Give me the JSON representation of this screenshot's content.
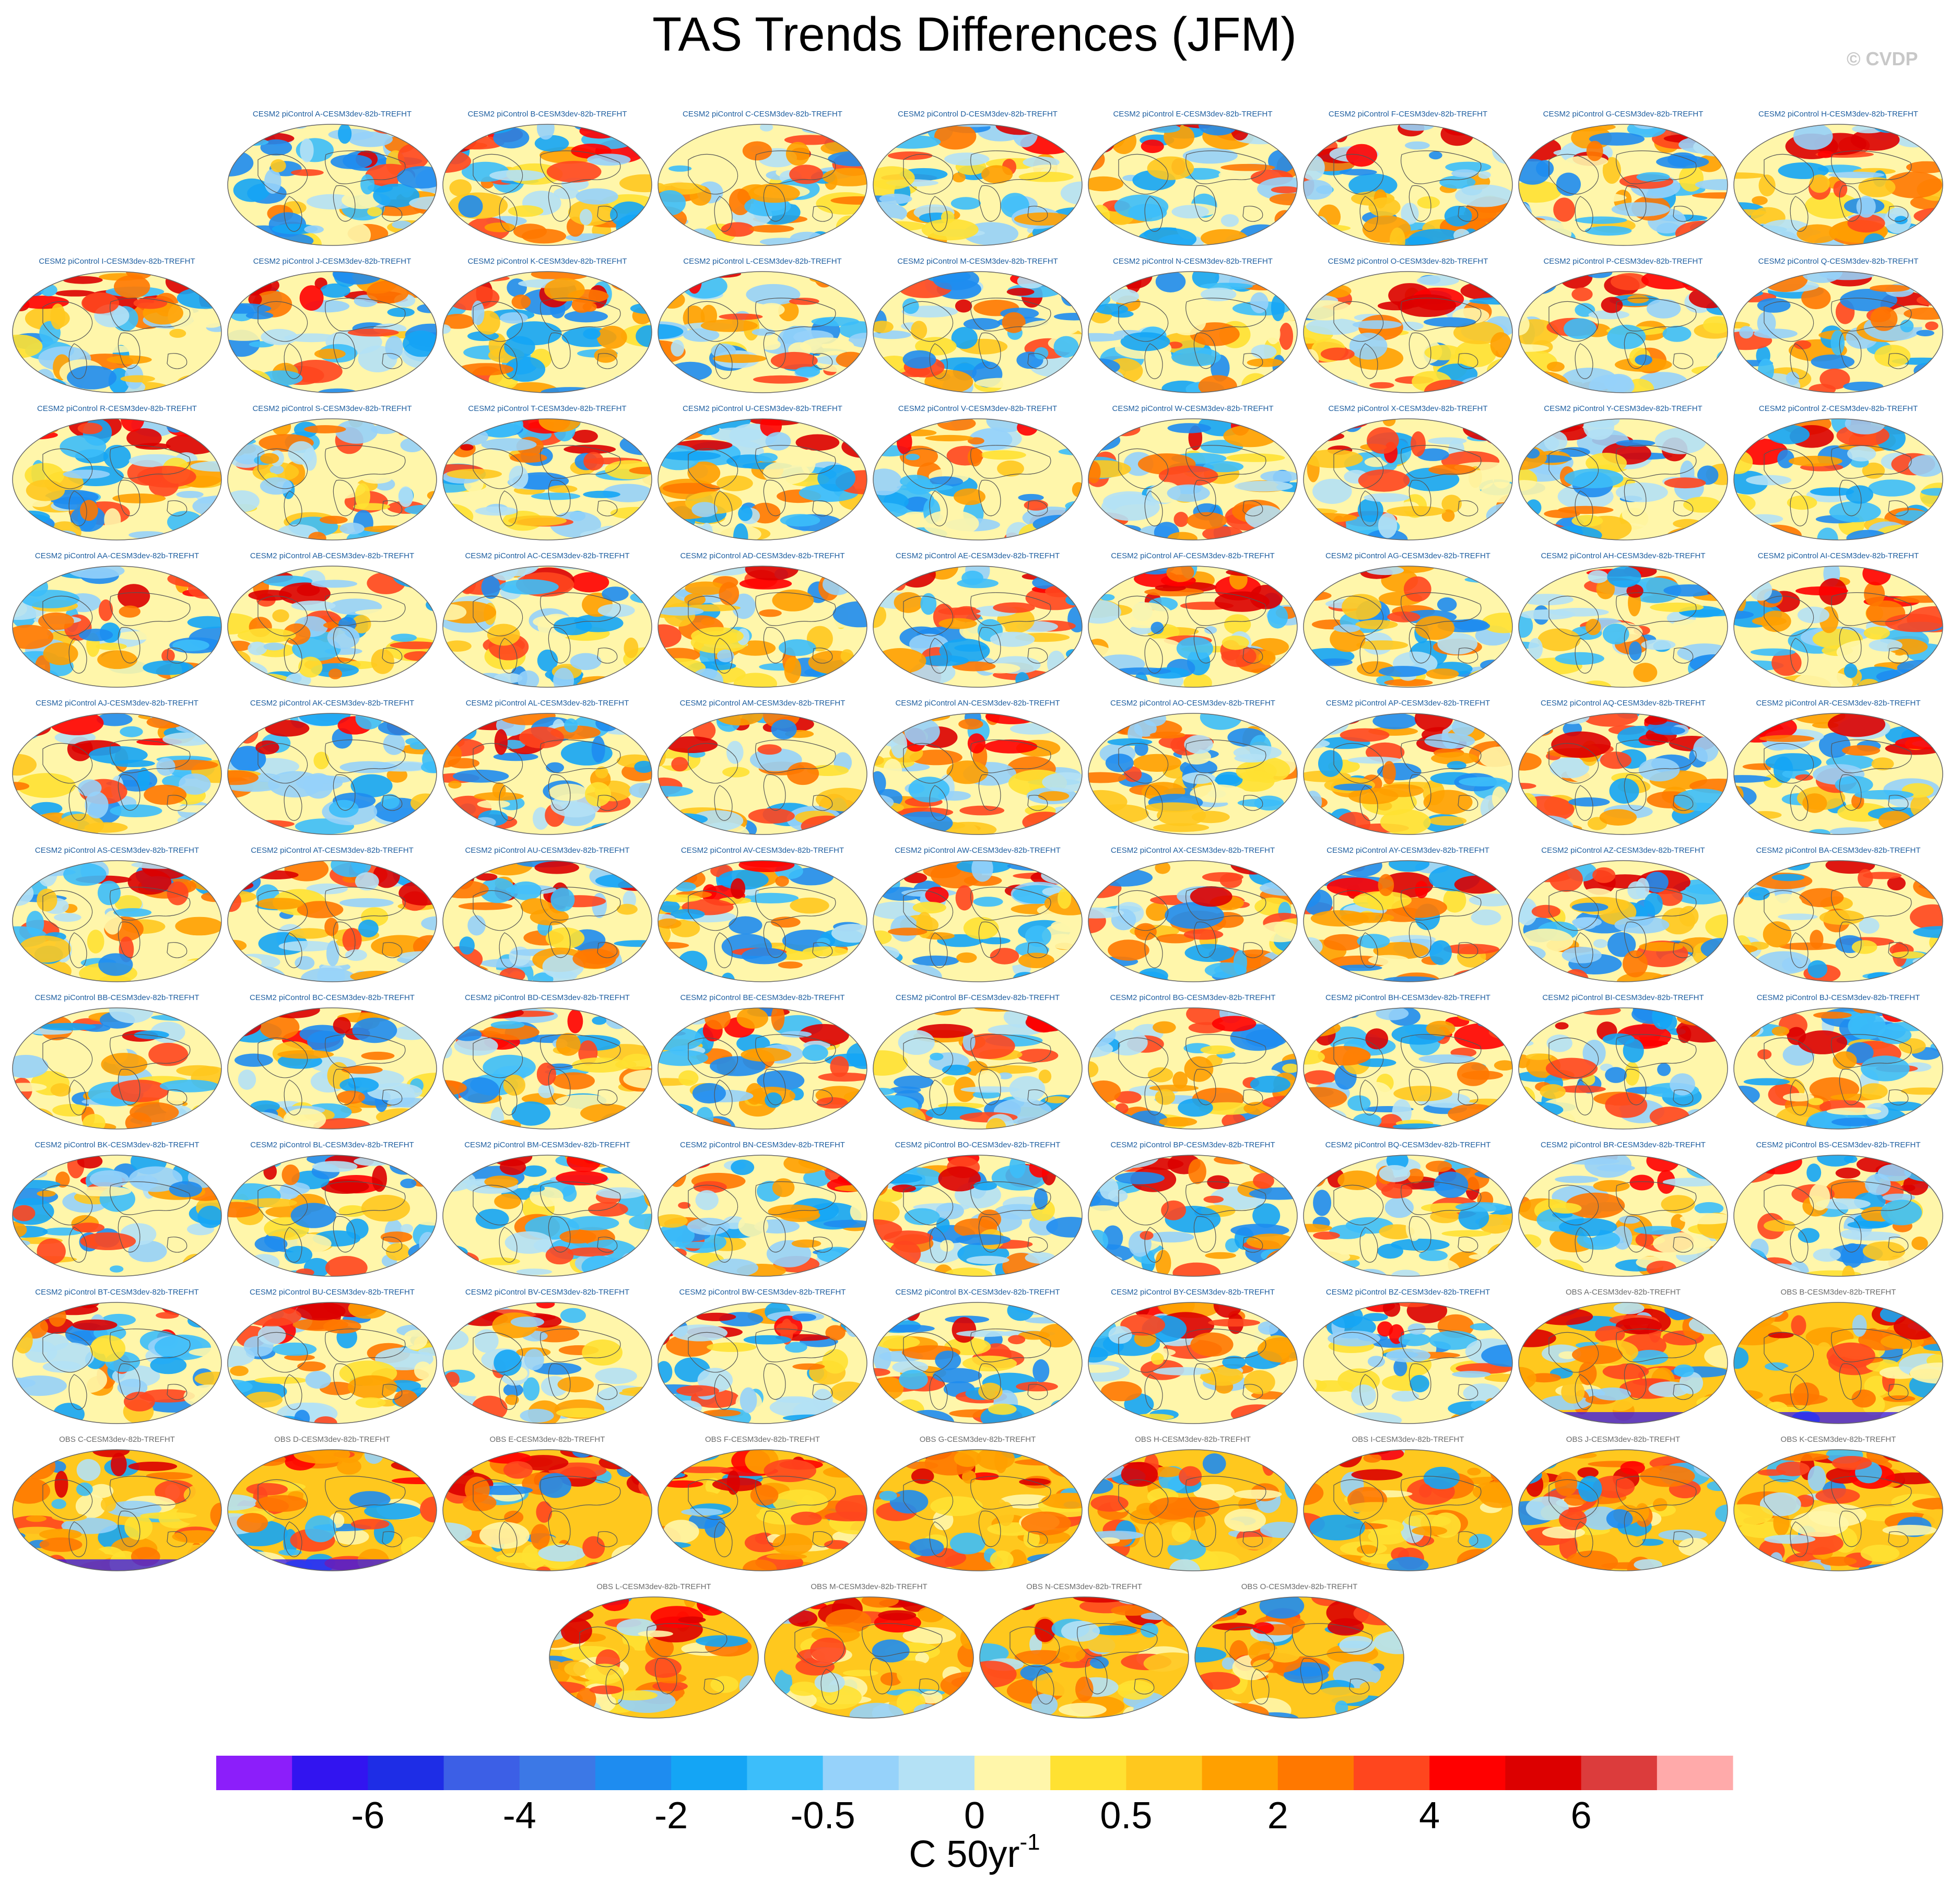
{
  "title": "TAS Trends Differences (JFM)",
  "credit": "© CVDP",
  "colors": {
    "model_label": "#1f5fa0",
    "obs_label": "#6b6b6b",
    "coastline": "#555555",
    "contour_scale": [
      "#8c1efa",
      "#3214f0",
      "#1e2de6",
      "#3c5fe6",
      "#3c78e6",
      "#1e8cf0",
      "#14a5f5",
      "#3cbefa",
      "#96d2fa",
      "#b4e1f5",
      "#fff6aa",
      "#ffe132",
      "#ffc81e",
      "#ffa000",
      "#ff7800",
      "#ff461e",
      "#ff0000",
      "#dc0000",
      "#dc3c3c",
      "#ffaaaa"
    ]
  },
  "chart_data": {
    "type": "heatmap",
    "title": "TAS Trends Differences (JFM)",
    "units_label": "C 50yr",
    "units_exponent": "-1",
    "colorbar": {
      "colors": [
        "#8c1efa",
        "#3214f0",
        "#1e2de6",
        "#3c5fe6",
        "#3c78e6",
        "#1e8cf0",
        "#14a5f5",
        "#3cbefa",
        "#96d2fa",
        "#b4e1f5",
        "#fff6aa",
        "#ffe132",
        "#ffc81e",
        "#ffa000",
        "#ff7800",
        "#ff461e",
        "#ff0000",
        "#dc0000",
        "#dc3c3c",
        "#ffaaaa"
      ],
      "tick_labels": [
        "-6",
        "-4",
        "-2",
        "-0.5",
        "0",
        "0.5",
        "2",
        "4",
        "6"
      ],
      "tick_box_index": [
        2,
        4,
        6,
        8,
        10,
        12,
        14,
        16,
        18
      ]
    },
    "panels": [
      {
        "label": "CESM2 piControl A-CESM3dev-82b-TREFHT",
        "kind": "model",
        "row": 0,
        "col": 1
      },
      {
        "label": "CESM2 piControl B-CESM3dev-82b-TREFHT",
        "kind": "model",
        "row": 0,
        "col": 2
      },
      {
        "label": "CESM2 piControl C-CESM3dev-82b-TREFHT",
        "kind": "model",
        "row": 0,
        "col": 3
      },
      {
        "label": "CESM2 piControl D-CESM3dev-82b-TREFHT",
        "kind": "model",
        "row": 0,
        "col": 4
      },
      {
        "label": "CESM2 piControl E-CESM3dev-82b-TREFHT",
        "kind": "model",
        "row": 0,
        "col": 5
      },
      {
        "label": "CESM2 piControl F-CESM3dev-82b-TREFHT",
        "kind": "model",
        "row": 0,
        "col": 6
      },
      {
        "label": "CESM2 piControl G-CESM3dev-82b-TREFHT",
        "kind": "model",
        "row": 0,
        "col": 7
      },
      {
        "label": "CESM2 piControl H-CESM3dev-82b-TREFHT",
        "kind": "model",
        "row": 0,
        "col": 8
      },
      {
        "label": "CESM2 piControl I-CESM3dev-82b-TREFHT",
        "kind": "model",
        "row": 1,
        "col": 0
      },
      {
        "label": "CESM2 piControl J-CESM3dev-82b-TREFHT",
        "kind": "model",
        "row": 1,
        "col": 1
      },
      {
        "label": "CESM2 piControl K-CESM3dev-82b-TREFHT",
        "kind": "model",
        "row": 1,
        "col": 2
      },
      {
        "label": "CESM2 piControl L-CESM3dev-82b-TREFHT",
        "kind": "model",
        "row": 1,
        "col": 3
      },
      {
        "label": "CESM2 piControl M-CESM3dev-82b-TREFHT",
        "kind": "model",
        "row": 1,
        "col": 4
      },
      {
        "label": "CESM2 piControl N-CESM3dev-82b-TREFHT",
        "kind": "model",
        "row": 1,
        "col": 5
      },
      {
        "label": "CESM2 piControl O-CESM3dev-82b-TREFHT",
        "kind": "model",
        "row": 1,
        "col": 6
      },
      {
        "label": "CESM2 piControl P-CESM3dev-82b-TREFHT",
        "kind": "model",
        "row": 1,
        "col": 7
      },
      {
        "label": "CESM2 piControl Q-CESM3dev-82b-TREFHT",
        "kind": "model",
        "row": 1,
        "col": 8
      },
      {
        "label": "CESM2 piControl R-CESM3dev-82b-TREFHT",
        "kind": "model",
        "row": 2,
        "col": 0
      },
      {
        "label": "CESM2 piControl S-CESM3dev-82b-TREFHT",
        "kind": "model",
        "row": 2,
        "col": 1
      },
      {
        "label": "CESM2 piControl T-CESM3dev-82b-TREFHT",
        "kind": "model",
        "row": 2,
        "col": 2
      },
      {
        "label": "CESM2 piControl U-CESM3dev-82b-TREFHT",
        "kind": "model",
        "row": 2,
        "col": 3
      },
      {
        "label": "CESM2 piControl V-CESM3dev-82b-TREFHT",
        "kind": "model",
        "row": 2,
        "col": 4
      },
      {
        "label": "CESM2 piControl W-CESM3dev-82b-TREFHT",
        "kind": "model",
        "row": 2,
        "col": 5
      },
      {
        "label": "CESM2 piControl X-CESM3dev-82b-TREFHT",
        "kind": "model",
        "row": 2,
        "col": 6
      },
      {
        "label": "CESM2 piControl Y-CESM3dev-82b-TREFHT",
        "kind": "model",
        "row": 2,
        "col": 7
      },
      {
        "label": "CESM2 piControl Z-CESM3dev-82b-TREFHT",
        "kind": "model",
        "row": 2,
        "col": 8
      },
      {
        "label": "CESM2 piControl AA-CESM3dev-82b-TREFHT",
        "kind": "model",
        "row": 3,
        "col": 0
      },
      {
        "label": "CESM2 piControl AB-CESM3dev-82b-TREFHT",
        "kind": "model",
        "row": 3,
        "col": 1
      },
      {
        "label": "CESM2 piControl AC-CESM3dev-82b-TREFHT",
        "kind": "model",
        "row": 3,
        "col": 2
      },
      {
        "label": "CESM2 piControl AD-CESM3dev-82b-TREFHT",
        "kind": "model",
        "row": 3,
        "col": 3
      },
      {
        "label": "CESM2 piControl AE-CESM3dev-82b-TREFHT",
        "kind": "model",
        "row": 3,
        "col": 4
      },
      {
        "label": "CESM2 piControl AF-CESM3dev-82b-TREFHT",
        "kind": "model",
        "row": 3,
        "col": 5
      },
      {
        "label": "CESM2 piControl AG-CESM3dev-82b-TREFHT",
        "kind": "model",
        "row": 3,
        "col": 6
      },
      {
        "label": "CESM2 piControl AH-CESM3dev-82b-TREFHT",
        "kind": "model",
        "row": 3,
        "col": 7
      },
      {
        "label": "CESM2 piControl AI-CESM3dev-82b-TREFHT",
        "kind": "model",
        "row": 3,
        "col": 8
      },
      {
        "label": "CESM2 piControl AJ-CESM3dev-82b-TREFHT",
        "kind": "model",
        "row": 4,
        "col": 0
      },
      {
        "label": "CESM2 piControl AK-CESM3dev-82b-TREFHT",
        "kind": "model",
        "row": 4,
        "col": 1
      },
      {
        "label": "CESM2 piControl AL-CESM3dev-82b-TREFHT",
        "kind": "model",
        "row": 4,
        "col": 2
      },
      {
        "label": "CESM2 piControl AM-CESM3dev-82b-TREFHT",
        "kind": "model",
        "row": 4,
        "col": 3
      },
      {
        "label": "CESM2 piControl AN-CESM3dev-82b-TREFHT",
        "kind": "model",
        "row": 4,
        "col": 4
      },
      {
        "label": "CESM2 piControl AO-CESM3dev-82b-TREFHT",
        "kind": "model",
        "row": 4,
        "col": 5
      },
      {
        "label": "CESM2 piControl AP-CESM3dev-82b-TREFHT",
        "kind": "model",
        "row": 4,
        "col": 6
      },
      {
        "label": "CESM2 piControl AQ-CESM3dev-82b-TREFHT",
        "kind": "model",
        "row": 4,
        "col": 7
      },
      {
        "label": "CESM2 piControl AR-CESM3dev-82b-TREFHT",
        "kind": "model",
        "row": 4,
        "col": 8
      },
      {
        "label": "CESM2 piControl AS-CESM3dev-82b-TREFHT",
        "kind": "model",
        "row": 5,
        "col": 0
      },
      {
        "label": "CESM2 piControl AT-CESM3dev-82b-TREFHT",
        "kind": "model",
        "row": 5,
        "col": 1
      },
      {
        "label": "CESM2 piControl AU-CESM3dev-82b-TREFHT",
        "kind": "model",
        "row": 5,
        "col": 2
      },
      {
        "label": "CESM2 piControl AV-CESM3dev-82b-TREFHT",
        "kind": "model",
        "row": 5,
        "col": 3
      },
      {
        "label": "CESM2 piControl AW-CESM3dev-82b-TREFHT",
        "kind": "model",
        "row": 5,
        "col": 4
      },
      {
        "label": "CESM2 piControl AX-CESM3dev-82b-TREFHT",
        "kind": "model",
        "row": 5,
        "col": 5
      },
      {
        "label": "CESM2 piControl AY-CESM3dev-82b-TREFHT",
        "kind": "model",
        "row": 5,
        "col": 6
      },
      {
        "label": "CESM2 piControl AZ-CESM3dev-82b-TREFHT",
        "kind": "model",
        "row": 5,
        "col": 7
      },
      {
        "label": "CESM2 piControl BA-CESM3dev-82b-TREFHT",
        "kind": "model",
        "row": 5,
        "col": 8
      },
      {
        "label": "CESM2 piControl BB-CESM3dev-82b-TREFHT",
        "kind": "model",
        "row": 6,
        "col": 0
      },
      {
        "label": "CESM2 piControl BC-CESM3dev-82b-TREFHT",
        "kind": "model",
        "row": 6,
        "col": 1
      },
      {
        "label": "CESM2 piControl BD-CESM3dev-82b-TREFHT",
        "kind": "model",
        "row": 6,
        "col": 2
      },
      {
        "label": "CESM2 piControl BE-CESM3dev-82b-TREFHT",
        "kind": "model",
        "row": 6,
        "col": 3
      },
      {
        "label": "CESM2 piControl BF-CESM3dev-82b-TREFHT",
        "kind": "model",
        "row": 6,
        "col": 4
      },
      {
        "label": "CESM2 piControl BG-CESM3dev-82b-TREFHT",
        "kind": "model",
        "row": 6,
        "col": 5
      },
      {
        "label": "CESM2 piControl BH-CESM3dev-82b-TREFHT",
        "kind": "model",
        "row": 6,
        "col": 6
      },
      {
        "label": "CESM2 piControl BI-CESM3dev-82b-TREFHT",
        "kind": "model",
        "row": 6,
        "col": 7
      },
      {
        "label": "CESM2 piControl BJ-CESM3dev-82b-TREFHT",
        "kind": "model",
        "row": 6,
        "col": 8
      },
      {
        "label": "CESM2 piControl BK-CESM3dev-82b-TREFHT",
        "kind": "model",
        "row": 7,
        "col": 0
      },
      {
        "label": "CESM2 piControl BL-CESM3dev-82b-TREFHT",
        "kind": "model",
        "row": 7,
        "col": 1
      },
      {
        "label": "CESM2 piControl BM-CESM3dev-82b-TREFHT",
        "kind": "model",
        "row": 7,
        "col": 2
      },
      {
        "label": "CESM2 piControl BN-CESM3dev-82b-TREFHT",
        "kind": "model",
        "row": 7,
        "col": 3
      },
      {
        "label": "CESM2 piControl BO-CESM3dev-82b-TREFHT",
        "kind": "model",
        "row": 7,
        "col": 4
      },
      {
        "label": "CESM2 piControl BP-CESM3dev-82b-TREFHT",
        "kind": "model",
        "row": 7,
        "col": 5
      },
      {
        "label": "CESM2 piControl BQ-CESM3dev-82b-TREFHT",
        "kind": "model",
        "row": 7,
        "col": 6
      },
      {
        "label": "CESM2 piControl BR-CESM3dev-82b-TREFHT",
        "kind": "model",
        "row": 7,
        "col": 7
      },
      {
        "label": "CESM2 piControl BS-CESM3dev-82b-TREFHT",
        "kind": "model",
        "row": 7,
        "col": 8
      },
      {
        "label": "CESM2 piControl BT-CESM3dev-82b-TREFHT",
        "kind": "model",
        "row": 8,
        "col": 0
      },
      {
        "label": "CESM2 piControl BU-CESM3dev-82b-TREFHT",
        "kind": "model",
        "row": 8,
        "col": 1
      },
      {
        "label": "CESM2 piControl BV-CESM3dev-82b-TREFHT",
        "kind": "model",
        "row": 8,
        "col": 2
      },
      {
        "label": "CESM2 piControl BW-CESM3dev-82b-TREFHT",
        "kind": "model",
        "row": 8,
        "col": 3
      },
      {
        "label": "CESM2 piControl BX-CESM3dev-82b-TREFHT",
        "kind": "model",
        "row": 8,
        "col": 4
      },
      {
        "label": "CESM2 piControl BY-CESM3dev-82b-TREFHT",
        "kind": "model",
        "row": 8,
        "col": 5
      },
      {
        "label": "CESM2 piControl BZ-CESM3dev-82b-TREFHT",
        "kind": "model",
        "row": 8,
        "col": 6
      },
      {
        "label": "OBS A-CESM3dev-82b-TREFHT",
        "kind": "obs",
        "row": 8,
        "col": 7
      },
      {
        "label": "OBS B-CESM3dev-82b-TREFHT",
        "kind": "obs",
        "row": 8,
        "col": 8
      },
      {
        "label": "OBS C-CESM3dev-82b-TREFHT",
        "kind": "obs",
        "row": 9,
        "col": 0
      },
      {
        "label": "OBS D-CESM3dev-82b-TREFHT",
        "kind": "obs",
        "row": 9,
        "col": 1
      },
      {
        "label": "OBS E-CESM3dev-82b-TREFHT",
        "kind": "obs",
        "row": 9,
        "col": 2
      },
      {
        "label": "OBS F-CESM3dev-82b-TREFHT",
        "kind": "obs",
        "row": 9,
        "col": 3
      },
      {
        "label": "OBS G-CESM3dev-82b-TREFHT",
        "kind": "obs",
        "row": 9,
        "col": 4
      },
      {
        "label": "OBS H-CESM3dev-82b-TREFHT",
        "kind": "obs",
        "row": 9,
        "col": 5
      },
      {
        "label": "OBS I-CESM3dev-82b-TREFHT",
        "kind": "obs",
        "row": 9,
        "col": 6
      },
      {
        "label": "OBS J-CESM3dev-82b-TREFHT",
        "kind": "obs",
        "row": 9,
        "col": 7
      },
      {
        "label": "OBS K-CESM3dev-82b-TREFHT",
        "kind": "obs",
        "row": 9,
        "col": 8
      },
      {
        "label": "OBS L-CESM3dev-82b-TREFHT",
        "kind": "obs",
        "row": 10,
        "col": 0
      },
      {
        "label": "OBS M-CESM3dev-82b-TREFHT",
        "kind": "obs",
        "row": 10,
        "col": 1
      },
      {
        "label": "OBS N-CESM3dev-82b-TREFHT",
        "kind": "obs",
        "row": 10,
        "col": 2
      },
      {
        "label": "OBS O-CESM3dev-82b-TREFHT",
        "kind": "obs",
        "row": 10,
        "col": 3
      }
    ]
  }
}
